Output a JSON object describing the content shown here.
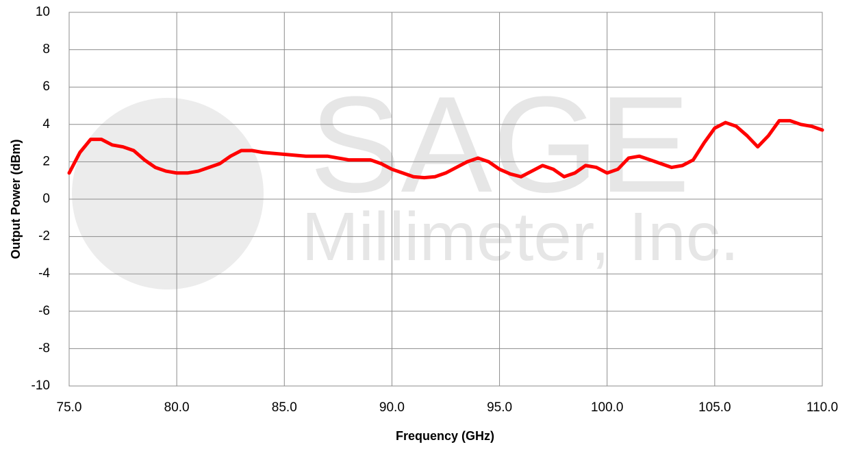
{
  "chart_data": {
    "type": "line",
    "xlabel": "Frequency (GHz)",
    "ylabel": "Output Power (dBm)",
    "watermark": [
      "SAGE",
      "Millimeter, Inc."
    ],
    "x": [
      75,
      75.5,
      76,
      76.5,
      77,
      77.5,
      78,
      78.5,
      79,
      79.5,
      80,
      80.5,
      81,
      81.5,
      82,
      82.5,
      83,
      83.5,
      84,
      85,
      86,
      87,
      88,
      89,
      89.5,
      90,
      90.5,
      91,
      91.5,
      92,
      92.5,
      93,
      93.5,
      94,
      94.5,
      95,
      95.5,
      96,
      96.5,
      97,
      97.5,
      98,
      98.5,
      99,
      99.5,
      100,
      100.5,
      101,
      101.5,
      102,
      102.5,
      103,
      103.5,
      104,
      104.5,
      105,
      105.5,
      106,
      106.5,
      107,
      107.5,
      108,
      108.5,
      109,
      109.5,
      110
    ],
    "series": [
      {
        "name": "Output Power",
        "color": "#ff0000",
        "values": [
          1.4,
          2.5,
          3.2,
          3.2,
          2.9,
          2.8,
          2.6,
          2.1,
          1.7,
          1.5,
          1.4,
          1.4,
          1.5,
          1.7,
          1.9,
          2.3,
          2.6,
          2.6,
          2.5,
          2.4,
          2.3,
          2.3,
          2.1,
          2.1,
          1.9,
          1.6,
          1.4,
          1.2,
          1.15,
          1.2,
          1.4,
          1.7,
          2.0,
          2.2,
          2.0,
          1.6,
          1.35,
          1.2,
          1.5,
          1.8,
          1.6,
          1.2,
          1.4,
          1.8,
          1.7,
          1.4,
          1.6,
          2.2,
          2.3,
          2.1,
          1.9,
          1.7,
          1.8,
          2.1,
          3.0,
          3.8,
          4.1,
          3.9,
          3.4,
          2.8,
          3.4,
          4.2,
          4.2,
          4.0,
          3.9,
          3.7
        ]
      }
    ],
    "xlim": [
      75,
      110
    ],
    "xticks": [
      {
        "value": 75,
        "label": "75.0"
      },
      {
        "value": 80,
        "label": "80.0"
      },
      {
        "value": 85,
        "label": "85.0"
      },
      {
        "value": 90,
        "label": "90.0"
      },
      {
        "value": 95,
        "label": "95.0"
      },
      {
        "value": 100,
        "label": "100.0"
      },
      {
        "value": 105,
        "label": "105.0"
      },
      {
        "value": 110,
        "label": "110.0"
      }
    ],
    "ylim": [
      -10,
      10
    ],
    "yticks": [
      -10,
      -8,
      -6,
      -4,
      -2,
      0,
      2,
      4,
      6,
      8,
      10
    ],
    "grid": true
  }
}
